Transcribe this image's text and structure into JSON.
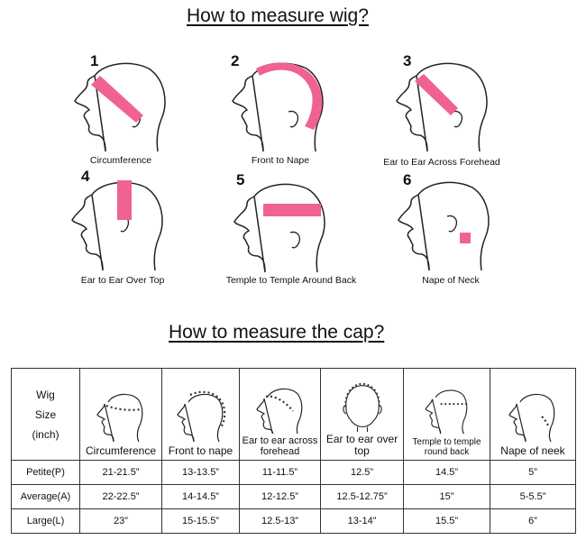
{
  "titles": {
    "wig": "How to measure wig?",
    "cap": "How to measure the cap?"
  },
  "steps": [
    {
      "number": "1",
      "caption": "Circumference"
    },
    {
      "number": "2",
      "caption": "Front to Nape"
    },
    {
      "number": "3",
      "caption": "Ear to Ear Across Forehead"
    },
    {
      "number": "4",
      "caption": "Ear to Ear Over Top"
    },
    {
      "number": "5",
      "caption": "Temple to Temple Around Back"
    },
    {
      "number": "6",
      "caption": "Nape of Neck"
    }
  ],
  "table": {
    "corner": [
      "Wig",
      "Size",
      "(inch)"
    ],
    "columns": [
      "Circumference",
      "Front to nape",
      "Ear to ear across forehead",
      "Ear to ear over top",
      "Temple to temple round back",
      "Nape of neek"
    ],
    "rows": [
      {
        "label": "Petite(P)",
        "values": [
          "21-21.5”",
          "13-13.5”",
          "11-11.5”",
          "12.5”",
          "14.5”",
          "5”"
        ]
      },
      {
        "label": "Average(A)",
        "values": [
          "22-22.5”",
          "14-14.5”",
          "12-12.5”",
          "12.5-12.75”",
          "15”",
          "5-5.5”"
        ]
      },
      {
        "label": "Large(L)",
        "values": [
          "23”",
          "15-15.5”",
          "12.5-13”",
          "13-14”",
          "15.5”",
          "6”"
        ]
      }
    ]
  },
  "colors": {
    "tape": "#f06292",
    "line": "#222222",
    "dots": "#333333"
  }
}
